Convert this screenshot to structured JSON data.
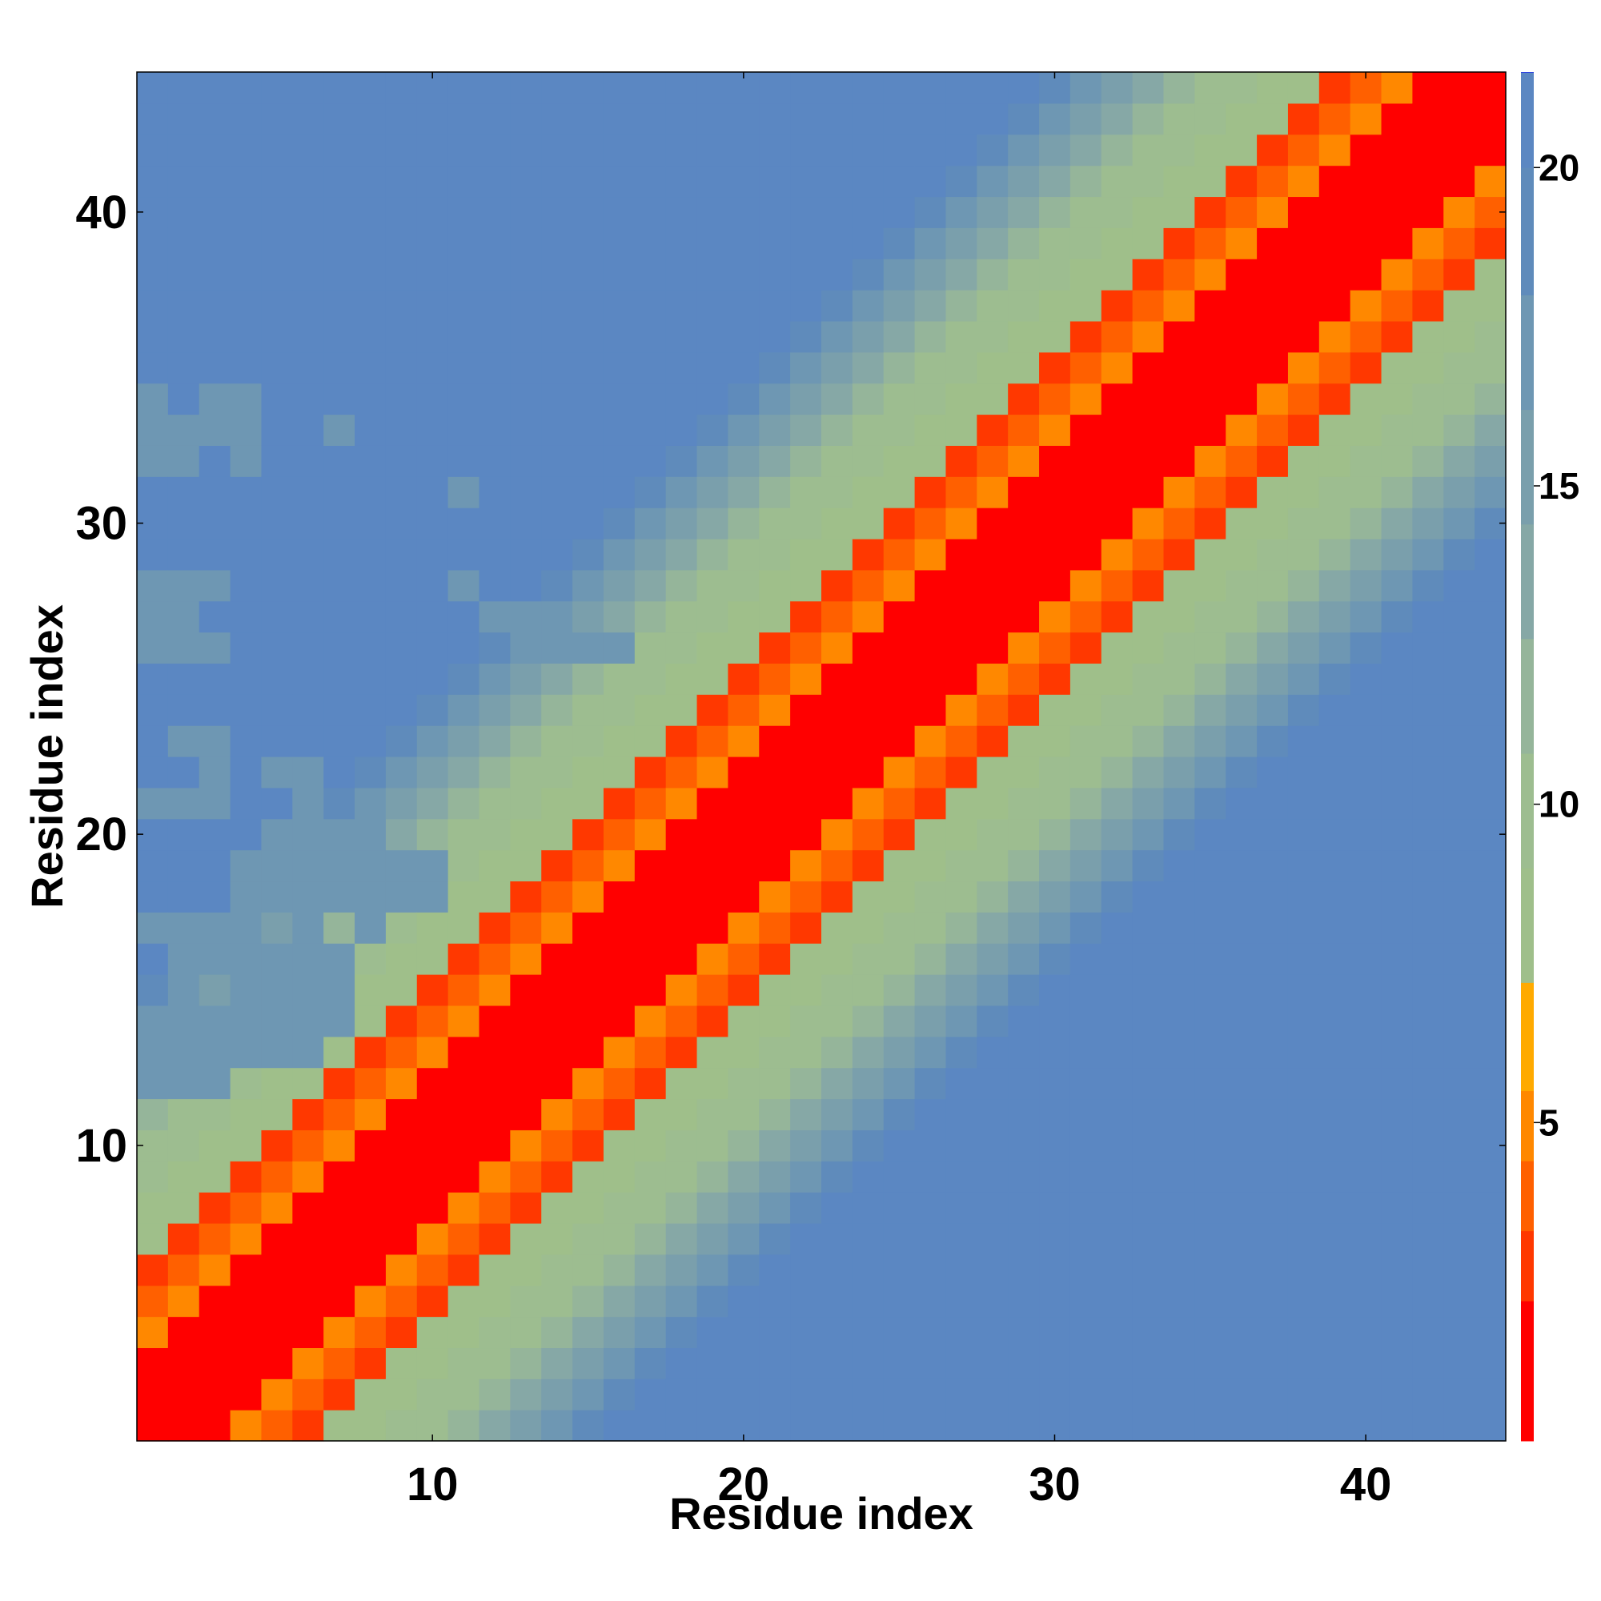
{
  "chart_data": {
    "type": "heatmap",
    "title": "",
    "xlabel": "Residue index",
    "ylabel": "Residue index",
    "x_range": [
      1,
      44
    ],
    "y_range": [
      1,
      44
    ],
    "x_ticks": [
      10,
      20,
      30,
      40
    ],
    "y_ticks": [
      10,
      20,
      30,
      40
    ],
    "colorbar": {
      "ticks": [
        5,
        10,
        15,
        20
      ],
      "min": 0,
      "max": 21.5,
      "colors": [
        "#ff0000",
        "#ff0000",
        "#ff3800",
        "#ff6000",
        "#ff8800",
        "#ffaa00",
        "#9fbf8a",
        "#9dbd90",
        "#95b59a",
        "#86a8a6",
        "#7a9fac",
        "#6e97b3",
        "#5f8bbb",
        "#5b87c2",
        "#0000ff"
      ],
      "bounds": [
        0,
        1.1,
        2.2,
        3.3,
        4.4,
        5.5,
        7.2,
        9.0,
        10.8,
        12.6,
        14.4,
        16.2,
        18.0,
        20.0,
        21.5
      ]
    },
    "pattern": {
      "description_key": "distance increases with |i-j|; lower-left triangle noisier",
      "noise_high": [
        [
          1,
          32
        ],
        [
          1,
          33
        ],
        [
          1,
          34
        ],
        [
          2,
          33
        ],
        [
          3,
          33
        ],
        [
          3,
          34
        ],
        [
          4,
          33
        ],
        [
          4,
          34
        ],
        [
          4,
          32
        ],
        [
          7,
          33
        ],
        [
          2,
          32
        ],
        [
          1,
          28
        ],
        [
          2,
          28
        ],
        [
          3,
          28
        ],
        [
          1,
          27
        ],
        [
          2,
          27
        ],
        [
          1,
          26
        ],
        [
          2,
          26
        ],
        [
          3,
          26
        ],
        [
          2,
          23
        ],
        [
          3,
          23
        ],
        [
          3,
          22
        ],
        [
          5,
          22
        ],
        [
          6,
          22
        ],
        [
          1,
          21
        ],
        [
          2,
          21
        ],
        [
          3,
          21
        ],
        [
          6,
          21
        ],
        [
          5,
          20
        ],
        [
          6,
          20
        ],
        [
          7,
          20
        ],
        [
          8,
          20
        ],
        [
          4,
          19
        ],
        [
          5,
          19
        ],
        [
          6,
          19
        ],
        [
          7,
          19
        ],
        [
          8,
          19
        ],
        [
          9,
          19
        ],
        [
          10,
          19
        ],
        [
          4,
          18
        ],
        [
          5,
          18
        ],
        [
          6,
          18
        ],
        [
          7,
          18
        ],
        [
          8,
          18
        ],
        [
          9,
          18
        ],
        [
          10,
          18
        ],
        [
          1,
          17
        ],
        [
          2,
          17
        ],
        [
          3,
          17
        ],
        [
          4,
          17
        ],
        [
          6,
          17
        ],
        [
          8,
          17
        ],
        [
          2,
          16
        ],
        [
          3,
          16
        ],
        [
          4,
          16
        ],
        [
          5,
          16
        ],
        [
          6,
          16
        ],
        [
          7,
          16
        ],
        [
          4,
          15
        ],
        [
          5,
          15
        ],
        [
          6,
          15
        ],
        [
          7,
          15
        ],
        [
          1,
          14
        ],
        [
          2,
          14
        ],
        [
          3,
          14
        ],
        [
          4,
          14
        ],
        [
          5,
          14
        ],
        [
          6,
          14
        ],
        [
          7,
          14
        ],
        [
          1,
          13
        ],
        [
          2,
          13
        ],
        [
          3,
          13
        ],
        [
          4,
          13
        ],
        [
          5,
          13
        ],
        [
          6,
          13
        ],
        [
          1,
          12
        ],
        [
          2,
          12
        ],
        [
          3,
          12
        ]
      ],
      "upper_cells": [
        [
          11,
          31
        ],
        [
          12,
          27
        ],
        [
          13,
          27
        ],
        [
          11,
          28
        ],
        [
          13,
          26
        ],
        [
          14,
          26
        ],
        [
          15,
          26
        ],
        [
          16,
          26
        ]
      ]
    }
  }
}
